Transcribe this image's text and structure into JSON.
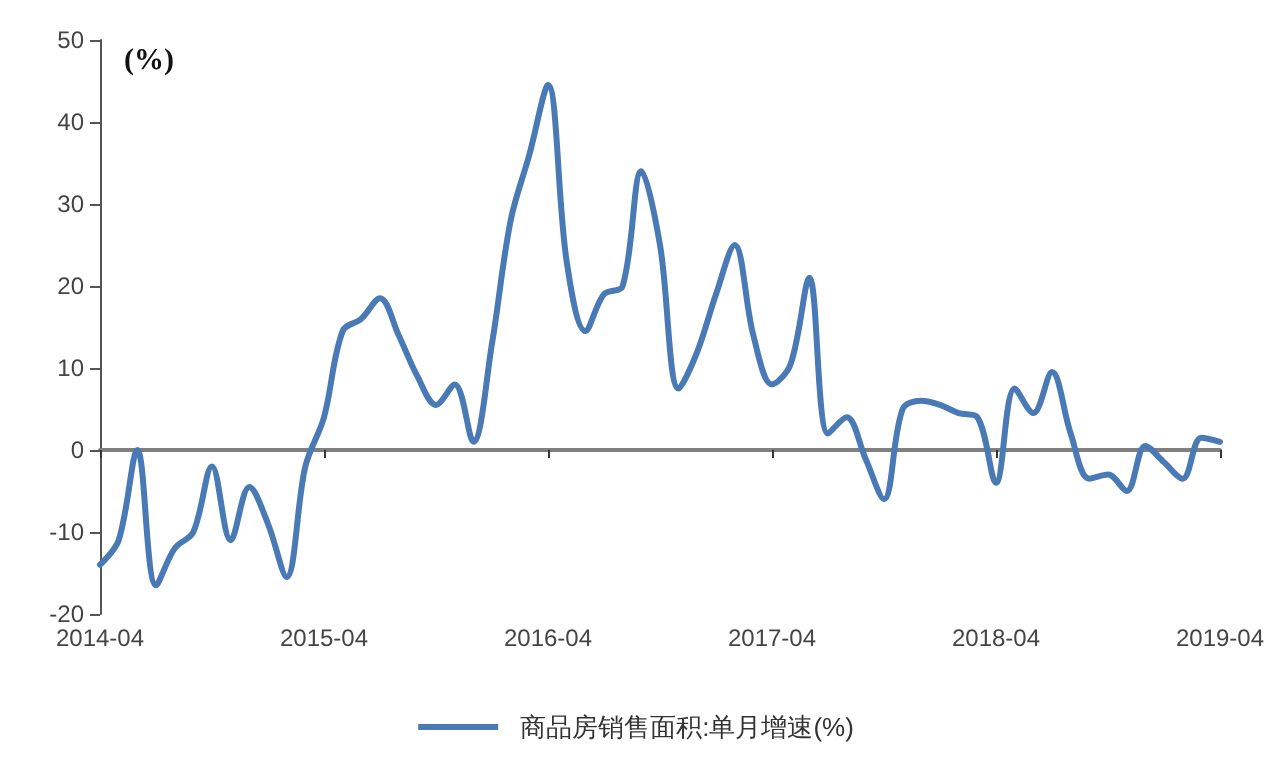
{
  "chart_data": {
    "type": "line",
    "ylabel": "(%)",
    "categories": [
      "2014-04",
      null,
      null,
      null,
      null,
      null,
      null,
      null,
      null,
      null,
      null,
      null,
      "2015-04",
      null,
      null,
      null,
      null,
      null,
      null,
      null,
      null,
      null,
      null,
      null,
      "2016-04",
      null,
      null,
      null,
      null,
      null,
      null,
      null,
      null,
      null,
      null,
      null,
      "2017-04",
      null,
      null,
      null,
      null,
      null,
      null,
      null,
      null,
      null,
      null,
      null,
      "2018-04",
      null,
      null,
      null,
      null,
      null,
      null,
      null,
      null,
      null,
      null,
      null,
      "2019-04"
    ],
    "series": [
      {
        "name": "商品房销售面积:单月增速(%)",
        "color": "#4a7ab5",
        "values": [
          -14,
          -11,
          0,
          -16.5,
          -12,
          -10,
          -2,
          -11,
          -4.5,
          -9,
          -15.5,
          -2,
          4,
          14.5,
          16,
          18.5,
          14,
          9,
          5.5,
          8,
          1,
          13,
          28,
          36,
          44.5,
          23,
          14.5,
          19,
          20,
          34,
          25,
          7.5,
          12,
          19,
          25,
          14,
          8,
          10.5,
          21,
          2,
          4,
          -1,
          -6,
          5,
          6,
          5.5,
          4.5,
          4,
          -4,
          7.5,
          4.5,
          9.5,
          2,
          -3.5,
          -3,
          -5,
          0.5,
          -1.5,
          -3.5,
          1.5,
          1
        ]
      }
    ],
    "ylim": [
      -20,
      50
    ],
    "yticks": [
      -20,
      -10,
      0,
      10,
      20,
      30,
      40,
      50
    ],
    "legend": "bottom",
    "marker": "none",
    "line_style": "solid"
  }
}
